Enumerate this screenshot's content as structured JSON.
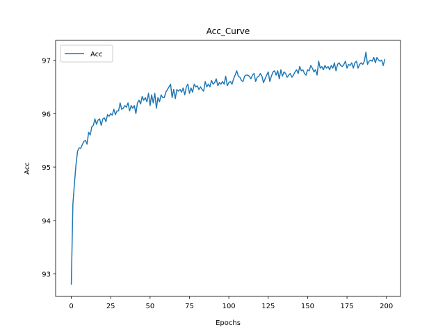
{
  "chart_data": {
    "type": "line",
    "title": "Acc_Curve",
    "x_label": "Epochs",
    "y_label": "Acc",
    "x": [
      0,
      1,
      2,
      3,
      4,
      5,
      6,
      7,
      8,
      9,
      10,
      11,
      12,
      13,
      14,
      15,
      16,
      17,
      18,
      19,
      20,
      21,
      22,
      23,
      24,
      25,
      26,
      27,
      28,
      29,
      30,
      31,
      32,
      33,
      34,
      35,
      36,
      37,
      38,
      39,
      40,
      41,
      42,
      43,
      44,
      45,
      46,
      47,
      48,
      49,
      50,
      51,
      52,
      53,
      54,
      55,
      56,
      57,
      58,
      59,
      60,
      61,
      62,
      63,
      64,
      65,
      66,
      67,
      68,
      69,
      70,
      71,
      72,
      73,
      74,
      75,
      76,
      77,
      78,
      79,
      80,
      81,
      82,
      83,
      84,
      85,
      86,
      87,
      88,
      89,
      90,
      91,
      92,
      93,
      94,
      95,
      96,
      97,
      98,
      99,
      100,
      101,
      102,
      103,
      104,
      105,
      106,
      107,
      108,
      109,
      110,
      111,
      112,
      113,
      114,
      115,
      116,
      117,
      118,
      119,
      120,
      121,
      122,
      123,
      124,
      125,
      126,
      127,
      128,
      129,
      130,
      131,
      132,
      133,
      134,
      135,
      136,
      137,
      138,
      139,
      140,
      141,
      142,
      143,
      144,
      145,
      146,
      147,
      148,
      149,
      150,
      151,
      152,
      153,
      154,
      155,
      156,
      157,
      158,
      159,
      160,
      161,
      162,
      163,
      164,
      165,
      166,
      167,
      168,
      169,
      170,
      171,
      172,
      173,
      174,
      175,
      176,
      177,
      178,
      179,
      180,
      181,
      182,
      183,
      184,
      185,
      186,
      187,
      188,
      189,
      190,
      191,
      192,
      193,
      194,
      195,
      196,
      197,
      198,
      199
    ],
    "series": [
      {
        "name": "Acc",
        "color": "#1f77b4",
        "values": [
          92.8,
          94.3,
          94.7,
          95.05,
          95.3,
          95.36,
          95.35,
          95.42,
          95.48,
          95.5,
          95.43,
          95.65,
          95.6,
          95.75,
          95.78,
          95.9,
          95.8,
          95.88,
          95.9,
          95.78,
          95.9,
          95.92,
          95.85,
          95.98,
          95.95,
          96.0,
          95.97,
          96.08,
          95.98,
          96.05,
          96.05,
          96.2,
          96.08,
          96.1,
          96.15,
          96.12,
          96.2,
          96.05,
          96.15,
          96.1,
          96.15,
          96.0,
          96.2,
          96.25,
          96.18,
          96.32,
          96.25,
          96.3,
          96.22,
          96.38,
          96.15,
          96.35,
          96.2,
          96.38,
          96.1,
          96.3,
          96.22,
          96.35,
          96.3,
          96.3,
          96.4,
          96.45,
          96.5,
          96.55,
          96.3,
          96.45,
          96.28,
          96.45,
          96.42,
          96.45,
          96.4,
          96.48,
          96.35,
          96.5,
          96.55,
          96.38,
          96.48,
          96.4,
          96.55,
          96.5,
          96.52,
          96.45,
          96.5,
          96.45,
          96.42,
          96.6,
          96.5,
          96.55,
          96.5,
          96.62,
          96.55,
          96.58,
          96.65,
          96.52,
          96.58,
          96.55,
          96.6,
          96.55,
          96.7,
          96.52,
          96.58,
          96.6,
          96.55,
          96.65,
          96.72,
          96.8,
          96.7,
          96.68,
          96.62,
          96.6,
          96.7,
          96.72,
          96.72,
          96.7,
          96.65,
          96.72,
          96.75,
          96.6,
          96.68,
          96.7,
          96.75,
          96.7,
          96.58,
          96.65,
          96.72,
          96.78,
          96.6,
          96.7,
          96.78,
          96.8,
          96.72,
          96.8,
          96.65,
          96.82,
          96.7,
          96.78,
          96.75,
          96.68,
          96.72,
          96.75,
          96.68,
          96.72,
          96.78,
          96.82,
          96.75,
          96.88,
          96.8,
          96.82,
          96.75,
          96.72,
          96.82,
          96.8,
          96.9,
          96.85,
          96.78,
          96.82,
          96.72,
          96.98,
          96.85,
          96.88,
          96.82,
          96.9,
          96.85,
          96.88,
          96.82,
          96.9,
          96.85,
          96.95,
          96.8,
          96.92,
          96.95,
          96.9,
          96.88,
          96.92,
          96.98,
          96.85,
          96.92,
          96.9,
          96.95,
          96.85,
          96.95,
          96.98,
          96.85,
          96.92,
          96.95,
          96.92,
          96.98,
          97.15,
          96.92,
          96.98,
          97.0,
          96.98,
          97.05,
          96.95,
          97.05,
          97.0,
          96.98,
          97.0,
          96.9,
          97.02
        ]
      }
    ],
    "xlim": [
      -9.95,
      208.95
    ],
    "ylim": [
      92.58,
      97.37
    ],
    "xticks": [
      0,
      25,
      50,
      75,
      100,
      125,
      150,
      175,
      200
    ],
    "yticks": [
      93,
      94,
      95,
      96,
      97
    ],
    "legend": "upper left",
    "grid": false
  }
}
